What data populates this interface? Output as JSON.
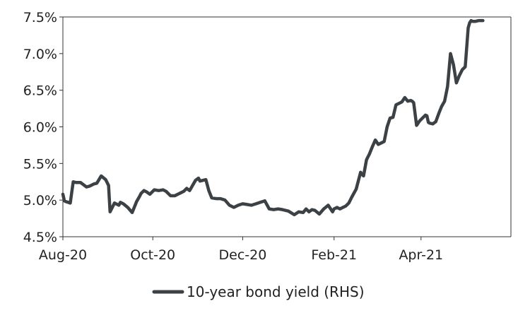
{
  "chart_data": {
    "type": "line",
    "title": "",
    "xlabel": "",
    "ylabel": "",
    "ylim": [
      4.5,
      7.5
    ],
    "xlim": [
      "2020-08-01",
      "2021-06-01"
    ],
    "yticks": [
      4.5,
      5.0,
      5.5,
      6.0,
      6.5,
      7.0,
      7.5
    ],
    "ytick_labels": [
      "4.5%",
      "5.0%",
      "5.5%",
      "6.0%",
      "6.5%",
      "7.0%",
      "7.5%"
    ],
    "xticks": [
      "2020-08-01",
      "2020-10-01",
      "2020-12-01",
      "2021-02-01",
      "2021-04-01"
    ],
    "xtick_labels": [
      "Aug-20",
      "Oct-20",
      "Dec-20",
      "Feb-21",
      "Apr-21"
    ],
    "grid": false,
    "legend_position": "bottom-center",
    "color": "#3c4145",
    "series": [
      {
        "name": "10-year bond yield (RHS)",
        "x": [
          "2020-08-01",
          "2020-08-02",
          "2020-08-03",
          "2020-08-06",
          "2020-08-08",
          "2020-08-10",
          "2020-08-13",
          "2020-08-17",
          "2020-08-19",
          "2020-08-22",
          "2020-08-24",
          "2020-08-27",
          "2020-08-30",
          "2020-08-31",
          "2020-09-01",
          "2020-09-02",
          "2020-09-05",
          "2020-09-07",
          "2020-09-08",
          "2020-09-09",
          "2020-09-11",
          "2020-09-14",
          "2020-09-17",
          "2020-09-20",
          "2020-09-22",
          "2020-09-23",
          "2020-09-25",
          "2020-09-27",
          "2020-09-29",
          "2020-10-02",
          "2020-10-05",
          "2020-10-08",
          "2020-10-10",
          "2020-10-13",
          "2020-10-16",
          "2020-10-18",
          "2020-10-20",
          "2020-10-22",
          "2020-10-24",
          "2020-10-26",
          "2020-10-28",
          "2020-10-30",
          "2020-11-01",
          "2020-11-02",
          "2020-11-04",
          "2020-11-06",
          "2020-11-08",
          "2020-11-10",
          "2020-11-13",
          "2020-11-16",
          "2020-11-19",
          "2020-11-22",
          "2020-11-25",
          "2020-11-28",
          "2020-12-01",
          "2020-12-04",
          "2020-12-07",
          "2020-12-10",
          "2020-12-13",
          "2020-12-16",
          "2020-12-19",
          "2020-12-22",
          "2020-12-25",
          "2020-12-28",
          "2021-01-01",
          "2021-01-05",
          "2021-01-08",
          "2021-01-11",
          "2021-01-13",
          "2021-01-15",
          "2021-01-17",
          "2021-01-19",
          "2021-01-22",
          "2021-01-25",
          "2021-01-28",
          "2021-01-31",
          "2021-02-01",
          "2021-02-03",
          "2021-02-05",
          "2021-02-07",
          "2021-02-09",
          "2021-02-11",
          "2021-02-13",
          "2021-02-16",
          "2021-02-19",
          "2021-02-20",
          "2021-02-21",
          "2021-02-23",
          "2021-02-25",
          "2021-02-26",
          "2021-02-27",
          "2021-03-01",
          "2021-03-03",
          "2021-03-05",
          "2021-03-07",
          "2021-03-09",
          "2021-03-11",
          "2021-03-13",
          "2021-03-15",
          "2021-03-17",
          "2021-03-19",
          "2021-03-21",
          "2021-03-23",
          "2021-03-25",
          "2021-03-26",
          "2021-03-27",
          "2021-03-29",
          "2021-03-31",
          "2021-04-02",
          "2021-04-04",
          "2021-04-05",
          "2021-04-06",
          "2021-04-07",
          "2021-04-09",
          "2021-04-11",
          "2021-04-13",
          "2021-04-15",
          "2021-04-17",
          "2021-04-19",
          "2021-04-21",
          "2021-04-23",
          "2021-04-25",
          "2021-04-27",
          "2021-04-29",
          "2021-05-01",
          "2021-05-03",
          "2021-05-04",
          "2021-05-05",
          "2021-05-06",
          "2021-05-08",
          "2021-05-10",
          "2021-05-11",
          "2021-05-12",
          "2021-05-13"
        ],
        "values": [
          5.08,
          4.99,
          4.98,
          4.96,
          5.25,
          5.24,
          5.24,
          5.18,
          5.19,
          5.22,
          5.23,
          5.33,
          5.28,
          5.24,
          5.2,
          4.84,
          4.96,
          4.94,
          4.93,
          4.97,
          4.95,
          4.9,
          4.83,
          4.98,
          5.05,
          5.09,
          5.13,
          5.11,
          5.08,
          5.14,
          5.13,
          5.14,
          5.12,
          5.06,
          5.06,
          5.08,
          5.1,
          5.12,
          5.16,
          5.13,
          5.2,
          5.27,
          5.3,
          5.26,
          5.27,
          5.28,
          5.13,
          5.03,
          5.02,
          5.02,
          5.0,
          4.93,
          4.9,
          4.93,
          4.95,
          4.94,
          4.93,
          4.95,
          4.97,
          4.99,
          4.88,
          4.87,
          4.88,
          4.87,
          4.85,
          4.8,
          4.84,
          4.83,
          4.88,
          4.84,
          4.87,
          4.86,
          4.81,
          4.88,
          4.93,
          4.84,
          4.88,
          4.9,
          4.88,
          4.9,
          4.92,
          4.96,
          5.04,
          5.15,
          5.38,
          5.35,
          5.33,
          5.55,
          5.63,
          5.68,
          5.73,
          5.82,
          5.76,
          5.78,
          5.8,
          6.0,
          6.12,
          6.13,
          6.3,
          6.32,
          6.34,
          6.4,
          6.35,
          6.36,
          6.35,
          6.33,
          6.02,
          6.08,
          6.12,
          6.16,
          6.15,
          6.06,
          6.05,
          6.04,
          6.07,
          6.18,
          6.28,
          6.35,
          6.55,
          7.0,
          6.85,
          6.6,
          6.7,
          6.78,
          6.82,
          7.35,
          7.42,
          7.45,
          7.44,
          7.44,
          7.45,
          7.45,
          7.45,
          7.45
        ]
      }
    ]
  }
}
